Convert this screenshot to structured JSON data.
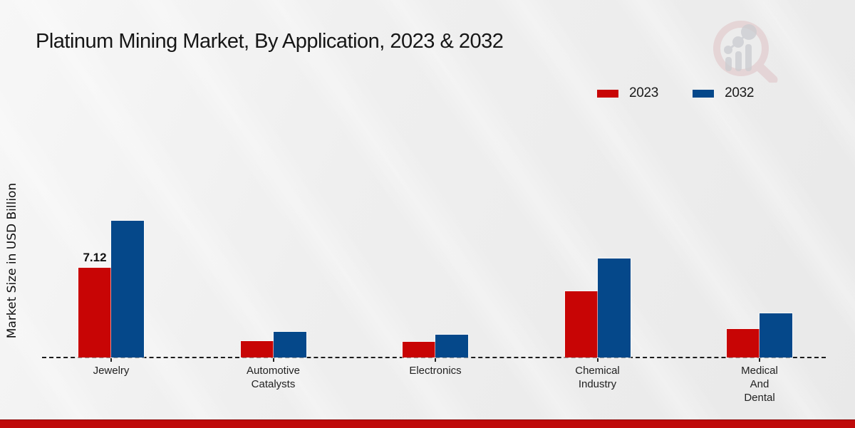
{
  "title": "Platinum Mining Market, By Application, 2023 & 2032",
  "ylabel": "Market Size in USD Billion",
  "watermark_icon": "magnifier-growth-chart-logo",
  "footer_color": "#bf0a0a",
  "chart_data": {
    "type": "bar",
    "title": "Platinum Mining Market, By Application, 2023 & 2032",
    "ylabel": "Market Size in USD Billion",
    "categories": [
      "Jewelry",
      "Automotive Catalysts",
      "Electronics",
      "Chemical Industry",
      "Medical And Dental"
    ],
    "category_label_lines": [
      [
        "Jewelry"
      ],
      [
        "Automotive",
        "Catalysts"
      ],
      [
        "Electronics"
      ],
      [
        "Chemical",
        "Industry"
      ],
      [
        "Medical",
        "And",
        "Dental"
      ]
    ],
    "series": [
      {
        "name": "2023",
        "color": "#c80505",
        "values": [
          7.12,
          1.3,
          1.25,
          5.25,
          2.25
        ]
      },
      {
        "name": "2032",
        "color": "#05488a",
        "values": [
          10.85,
          2.05,
          1.8,
          7.85,
          3.5
        ]
      }
    ],
    "annotations": [
      {
        "category_index": 0,
        "series_index": 0,
        "text": "7.12"
      }
    ],
    "ylim": [
      0,
      11.5
    ],
    "grid": false,
    "baseline_style": "dashed",
    "legend_position": "top-right"
  }
}
